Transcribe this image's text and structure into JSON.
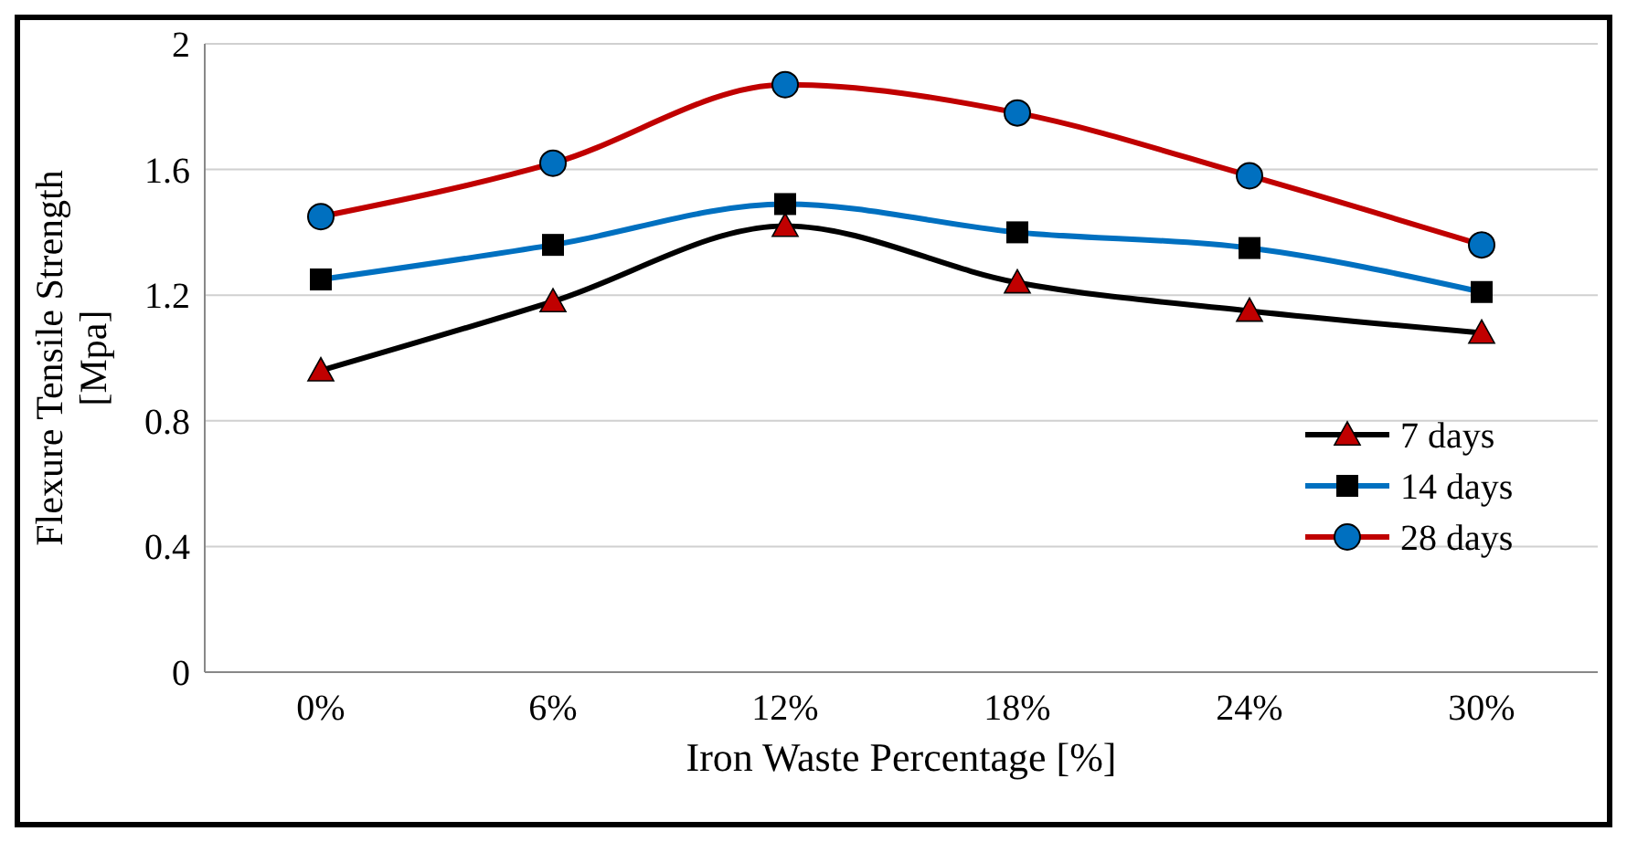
{
  "chart_data": {
    "type": "line",
    "xlabel": "Iron Waste Percentage  [%]",
    "ylabel": "Flexure Tensile Strength\n[Mpa]",
    "categories": [
      "0%",
      "6%",
      "12%",
      "18%",
      "24%",
      "30%"
    ],
    "ylim": [
      0,
      2
    ],
    "yticks": [
      0,
      0.4,
      0.8,
      1.2,
      1.6,
      2
    ],
    "grid": "y",
    "legend": "right",
    "series": [
      {
        "name": "7 days",
        "color": "#000000",
        "marker": "triangle",
        "colors": [
          "#c00000",
          "#c00000",
          "#c00000",
          "#c00000",
          "#c00000",
          "#c00000"
        ],
        "values": [
          0.96,
          1.18,
          1.42,
          1.24,
          1.15,
          1.08
        ]
      },
      {
        "name": "14 days",
        "color": "#0070c0",
        "marker": "square",
        "colors": [
          "#000000",
          "#000000",
          "#000000",
          "#000000",
          "#000000",
          "#000000"
        ],
        "values": [
          1.25,
          1.36,
          1.49,
          1.4,
          1.35,
          1.21
        ]
      },
      {
        "name": "28 days",
        "color": "#c00000",
        "marker": "circle",
        "colors": [
          "#0070c0",
          "#0070c0",
          "#0070c0",
          "#0070c0",
          "#0070c0",
          "#0070c0"
        ],
        "values": [
          1.45,
          1.62,
          1.87,
          1.78,
          1.58,
          1.36
        ]
      }
    ]
  }
}
